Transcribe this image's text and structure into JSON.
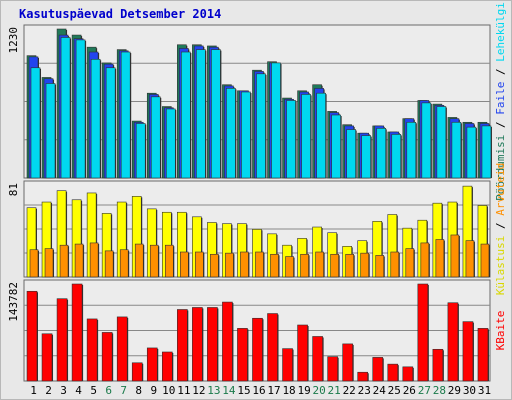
{
  "page": {
    "title": "Kasutuspäevad Detsember 2014"
  },
  "colors": {
    "background": "#e8e8e8",
    "panel": "#ececec",
    "grid": "#888888",
    "title": "#0000cc",
    "day_weekday": "#000000",
    "day_weekend": "#1a7a4a",
    "hits": "#207a5a",
    "files": "#2244ee",
    "pages": "#00d8f0",
    "visits": "#ffff00",
    "sites": "#ff9000",
    "kbytes": "#ff0000"
  },
  "chart_data": [
    {
      "type": "bar",
      "panel": "requests",
      "ymax_label": "1230",
      "ylim": [
        0,
        1230
      ],
      "right_labels": [
        {
          "text": "Pöördumisi",
          "color": "#207a5a"
        },
        {
          "text": " / ",
          "color": "#000000"
        },
        {
          "text": "Faile",
          "color": "#2244ee"
        },
        {
          "text": " / ",
          "color": "#000000"
        },
        {
          "text": "Lehekülgi",
          "color": "#00d8f0"
        }
      ],
      "categories": [
        "1",
        "2",
        "3",
        "4",
        "5",
        "6",
        "7",
        "8",
        "9",
        "10",
        "11",
        "12",
        "13",
        "14",
        "15",
        "16",
        "17",
        "18",
        "19",
        "20",
        "21",
        "22",
        "23",
        "24",
        "25",
        "26",
        "27",
        "28",
        "29",
        "30",
        "31"
      ],
      "series": [
        {
          "name": "Pöördumisi",
          "values": [
            1010,
            830,
            1230,
            1180,
            1080,
            950,
            1060,
            470,
            700,
            590,
            1100,
            1100,
            1090,
            770,
            720,
            890,
            960,
            660,
            720,
            770,
            550,
            440,
            370,
            430,
            380,
            490,
            640,
            610,
            500,
            460,
            460
          ]
        },
        {
          "name": "Faile",
          "values": [
            1000,
            820,
            1180,
            1150,
            1040,
            940,
            1050,
            460,
            690,
            580,
            1070,
            1090,
            1080,
            760,
            720,
            880,
            950,
            650,
            710,
            740,
            540,
            430,
            370,
            430,
            380,
            490,
            640,
            600,
            490,
            450,
            450
          ]
        },
        {
          "name": "Lehekülgi",
          "values": [
            910,
            780,
            1160,
            1140,
            980,
            910,
            1040,
            450,
            670,
            570,
            1040,
            1060,
            1060,
            740,
            710,
            860,
            950,
            640,
            690,
            700,
            520,
            400,
            350,
            410,
            360,
            460,
            620,
            590,
            460,
            420,
            430
          ]
        }
      ],
      "weekend_days": [
        "6",
        "7",
        "13",
        "14",
        "20",
        "21",
        "27",
        "28"
      ]
    },
    {
      "type": "bar",
      "panel": "visits",
      "ymax_label": "81",
      "ylim": [
        0,
        81
      ],
      "right_labels": [
        {
          "text": "Külastusi",
          "color": "#d8d800"
        },
        {
          "text": " / ",
          "color": "#000000"
        },
        {
          "text": "Arvuteid",
          "color": "#ff9000"
        }
      ],
      "categories": [
        "1",
        "2",
        "3",
        "4",
        "5",
        "6",
        "7",
        "8",
        "9",
        "10",
        "11",
        "12",
        "13",
        "14",
        "15",
        "16",
        "17",
        "18",
        "19",
        "20",
        "21",
        "22",
        "23",
        "24",
        "25",
        "26",
        "27",
        "28",
        "29",
        "30",
        "31"
      ],
      "series": [
        {
          "name": "Külastusi",
          "values": [
            61,
            66,
            76,
            68,
            74,
            56,
            66,
            71,
            60,
            57,
            57,
            53,
            48,
            47,
            47,
            42,
            38,
            28,
            34,
            44,
            39,
            27,
            32,
            49,
            55,
            43,
            50,
            65,
            66,
            80,
            63
          ]
        },
        {
          "name": "Arvuteid",
          "values": [
            24,
            25,
            28,
            29,
            30,
            23,
            24,
            29,
            28,
            28,
            22,
            22,
            20,
            21,
            22,
            22,
            20,
            18,
            20,
            22,
            20,
            20,
            21,
            19,
            22,
            25,
            30,
            33,
            37,
            32,
            29
          ]
        }
      ]
    },
    {
      "type": "bar",
      "panel": "kbytes",
      "ymax_label": "143782",
      "ylim": [
        0,
        143782
      ],
      "right_labels": [
        {
          "text": "KBaite",
          "color": "#ff0000"
        }
      ],
      "categories": [
        "1",
        "2",
        "3",
        "4",
        "5",
        "6",
        "7",
        "8",
        "9",
        "10",
        "11",
        "12",
        "13",
        "14",
        "15",
        "16",
        "17",
        "18",
        "19",
        "20",
        "21",
        "22",
        "23",
        "24",
        "25",
        "26",
        "27",
        "28",
        "29",
        "30",
        "31"
      ],
      "series": [
        {
          "name": "KBaite",
          "values": [
            133000,
            70000,
            122000,
            143782,
            92000,
            72000,
            95000,
            27000,
            49000,
            43000,
            106000,
            109000,
            109000,
            117000,
            78000,
            93000,
            100000,
            48000,
            83000,
            66000,
            36000,
            55000,
            13000,
            35000,
            25000,
            21000,
            143782,
            47000,
            116000,
            88000,
            78000
          ]
        }
      ]
    }
  ]
}
